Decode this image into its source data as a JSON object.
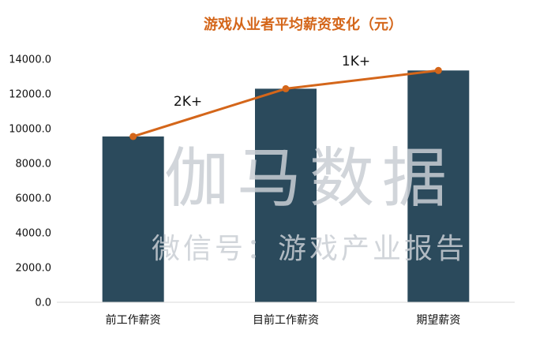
{
  "colors": {
    "bar": "#2b4a5c",
    "line": "#d4661a",
    "title": "#d4661a",
    "watermark": "#c9ced4",
    "axis": "#d9d9d9"
  },
  "chart_data": {
    "type": "bar",
    "title": "游戏从业者平均薪资变化（元）",
    "categories": [
      "前工作薪资",
      "目前工作薪资",
      "期望薪资"
    ],
    "values": [
      9550,
      12300,
      13350
    ],
    "line_values": [
      9550,
      12300,
      13350
    ],
    "ylim": [
      0,
      14000
    ],
    "yticks": [
      "0.0",
      "2000.0",
      "4000.0",
      "6000.0",
      "8000.0",
      "10000.0",
      "12000.0",
      "14000.0"
    ],
    "annotations": [
      "2K+",
      "1K+"
    ],
    "grid": false,
    "legend": "none"
  },
  "watermark": {
    "big": "伽马数据",
    "small": "微信号：游戏产业报告"
  }
}
